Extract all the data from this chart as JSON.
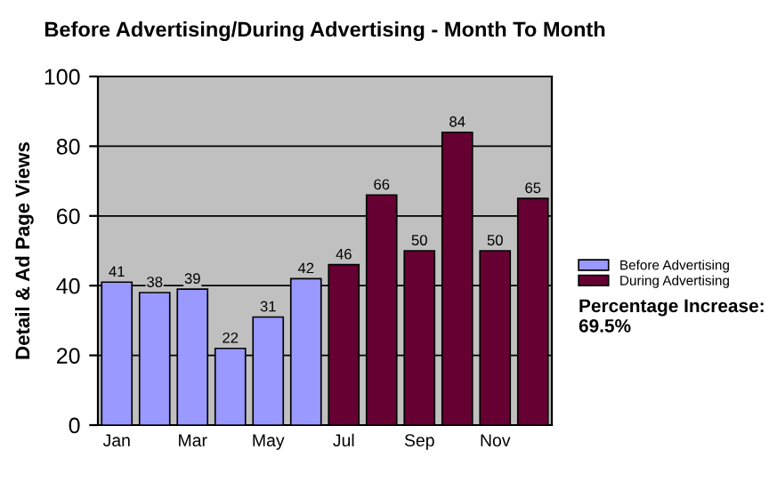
{
  "chart_data": {
    "type": "bar",
    "title": "Before Advertising/During Advertising - Month To Month",
    "ylabel": "Detail & Ad Page Views",
    "categories": [
      "Jan",
      null,
      "Mar",
      null,
      "May",
      null,
      "Jul",
      null,
      "Sep",
      null,
      "Nov",
      null
    ],
    "series": [
      {
        "name": "Before Advertising",
        "color": "#9999ff",
        "values": [
          41,
          38,
          39,
          22,
          31,
          42,
          null,
          null,
          null,
          null,
          null,
          null
        ]
      },
      {
        "name": "During Advertising",
        "color": "#660033",
        "values": [
          null,
          null,
          null,
          null,
          null,
          null,
          46,
          66,
          50,
          84,
          50,
          65
        ]
      }
    ],
    "ylim": [
      0,
      100
    ],
    "yticks": [
      0,
      20,
      40,
      60,
      80,
      100
    ],
    "grid": "y",
    "legend": "right",
    "data_labels": true,
    "annotations": [
      "Percentage Increase: 69.5%"
    ]
  }
}
